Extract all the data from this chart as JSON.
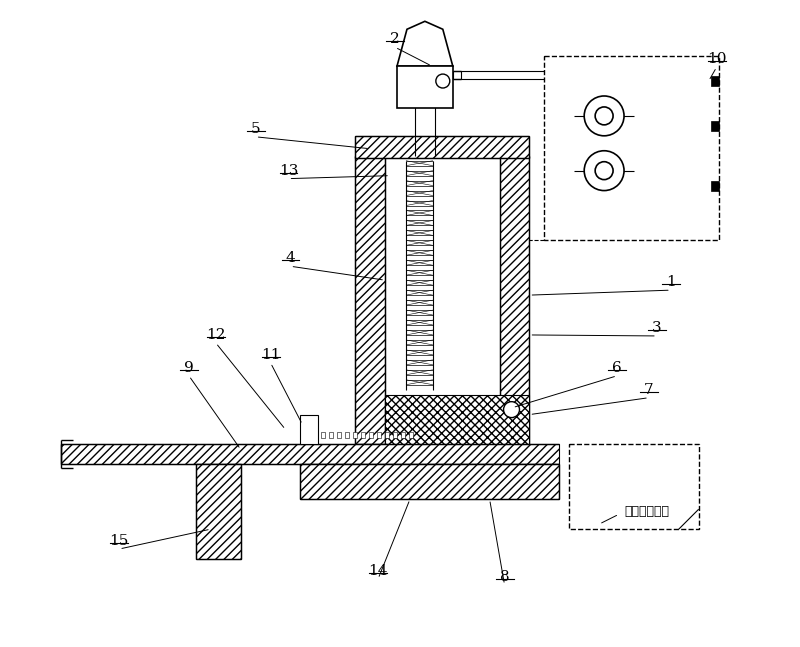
{
  "bg_color": "#ffffff",
  "line_color": "#000000",
  "figsize": [
    8.0,
    6.47
  ],
  "dpi": 100,
  "annotation_text": "展开定位支轿"
}
